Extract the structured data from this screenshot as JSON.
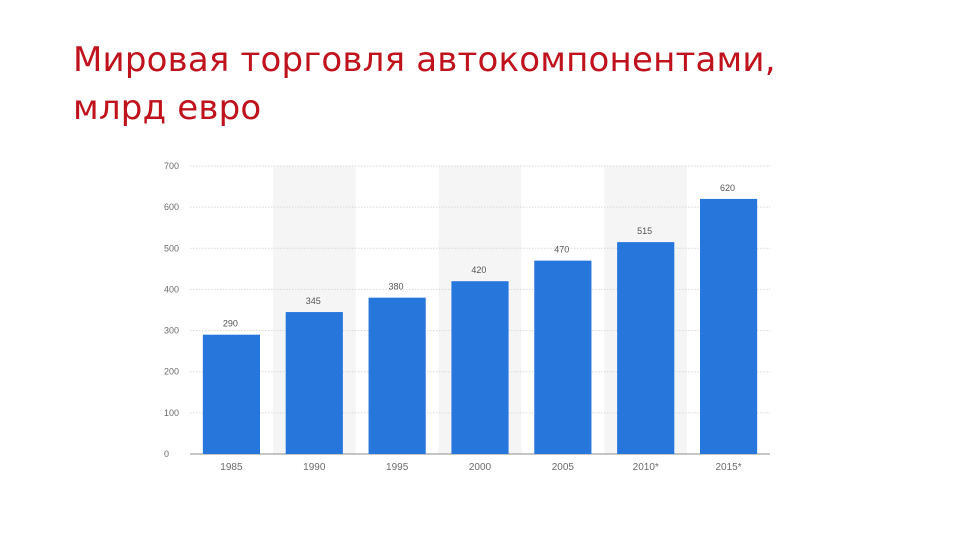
{
  "slide": {
    "title_line1": "Мировая торговля автокомпонентами,",
    "title_line2": "млрд евро"
  },
  "colors": {
    "title": "#c0121c",
    "bar": "#2776dc",
    "band": "#f5f5f5",
    "grid": "#d9d9d9"
  },
  "chart_data": {
    "type": "bar",
    "categories": [
      "1985",
      "1990",
      "1995",
      "2000",
      "2005",
      "2010*",
      "2015*"
    ],
    "values": [
      290,
      345,
      380,
      420,
      470,
      515,
      620
    ],
    "data_labels": [
      "290",
      "345",
      "380",
      "420",
      "470",
      "515",
      "620"
    ],
    "title": "",
    "xlabel": "",
    "ylabel": "",
    "ylim": [
      0,
      700
    ],
    "yticks": [
      "0",
      "100",
      "200",
      "300",
      "400",
      "500",
      "600",
      "700"
    ],
    "grid": true,
    "legend": "none",
    "shaded_bands_on_categories": [
      1,
      3,
      5
    ]
  }
}
